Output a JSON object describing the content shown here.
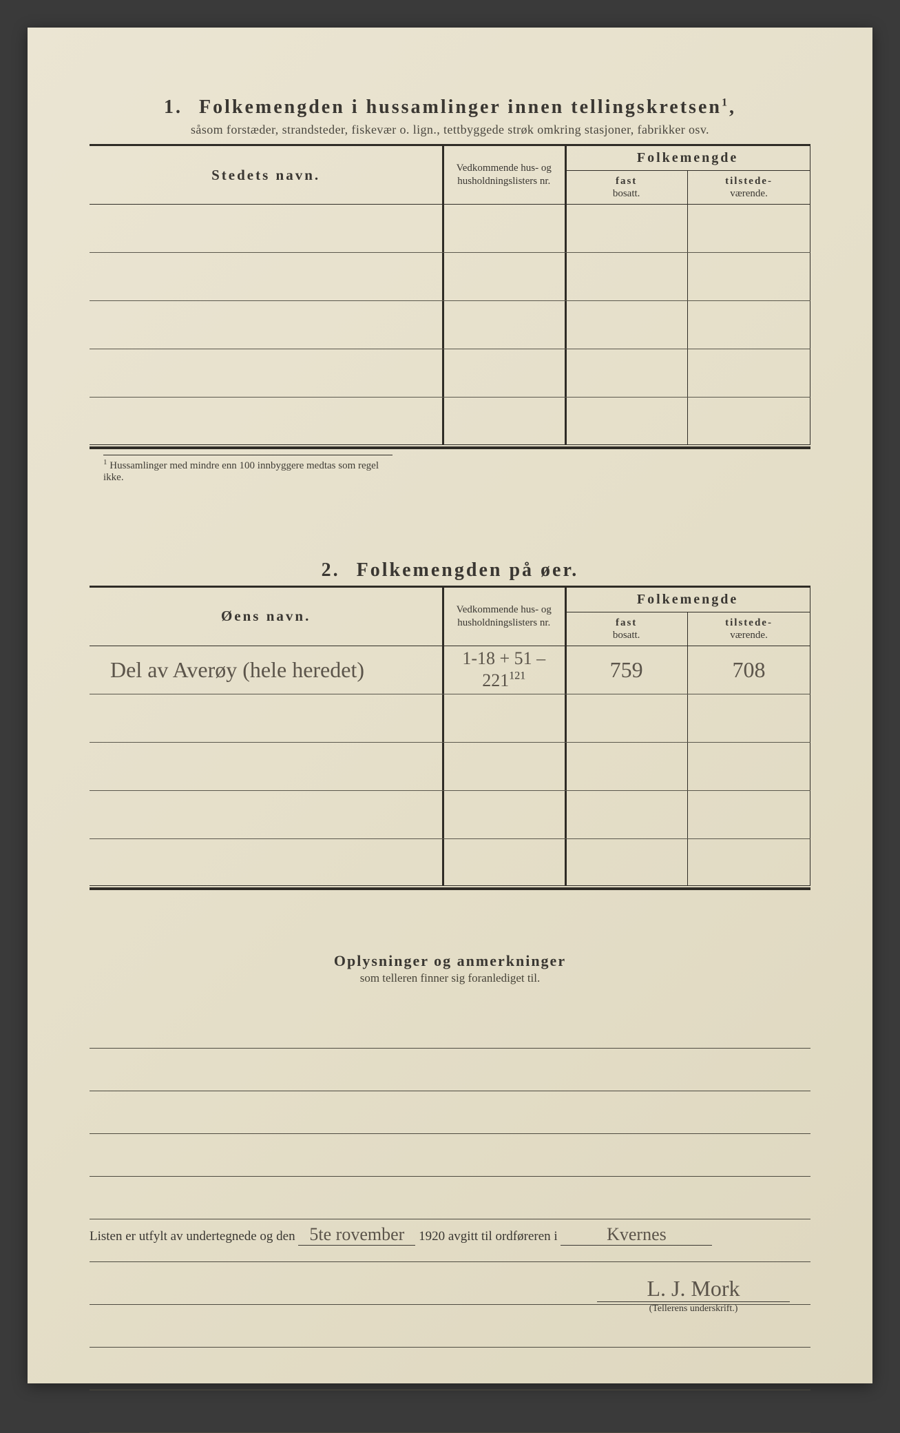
{
  "page": {
    "background_color": "#e8e2d0",
    "ink_color": "#3a3732"
  },
  "section1": {
    "number": "1.",
    "title": "Folkemengden i hussamlinger innen tellingskretsen",
    "title_sup": "1",
    "subtitle": "såsom forstæder, strandsteder, fiskevær o. lign., tettbyggede strøk omkring stasjoner, fabrikker osv.",
    "headers": {
      "name": "Stedets navn.",
      "reference": "Vedkommende hus- og husholdningslisters nr.",
      "folke": "Folkemengde",
      "fast_bold": "fast",
      "fast_sub": "bosatt.",
      "tilst_bold": "tilstede-",
      "tilst_sub": "værende."
    },
    "rows": 5,
    "footnote_sup": "1",
    "footnote": "Hussamlinger med mindre enn 100 innbyggere medtas som regel ikke."
  },
  "section2": {
    "number": "2.",
    "title": "Folkemengden på øer.",
    "headers": {
      "name": "Øens navn.",
      "reference": "Vedkommende hus- og husholdningslisters nr.",
      "folke": "Folkemengde",
      "fast_bold": "fast",
      "fast_sub": "bosatt.",
      "tilst_bold": "tilstede-",
      "tilst_sub": "værende."
    },
    "rows": [
      {
        "name": "Del av Averøy (hele heredet)",
        "ref_sup": "121",
        "ref": "1-18 + 51 – 221",
        "fast": "759",
        "tilstede": "708"
      },
      {
        "name": "",
        "ref": "",
        "fast": "",
        "tilstede": ""
      },
      {
        "name": "",
        "ref": "",
        "fast": "",
        "tilstede": ""
      },
      {
        "name": "",
        "ref": "",
        "fast": "",
        "tilstede": ""
      },
      {
        "name": "",
        "ref": "",
        "fast": "",
        "tilstede": ""
      }
    ]
  },
  "section3": {
    "title": "Oplysninger og anmerkninger",
    "subtitle": "som telleren finner sig foranlediget til.",
    "line_count": 10
  },
  "footer": {
    "prefix": "Listen er utfylt av undertegnede og den",
    "date_hand": "5te rovember",
    "year": "1920",
    "mid": "avgitt til ordføreren i",
    "place_hand": "Kvernes",
    "signature": "L. J. Mork",
    "caption": "(Tellerens underskrift.)"
  }
}
